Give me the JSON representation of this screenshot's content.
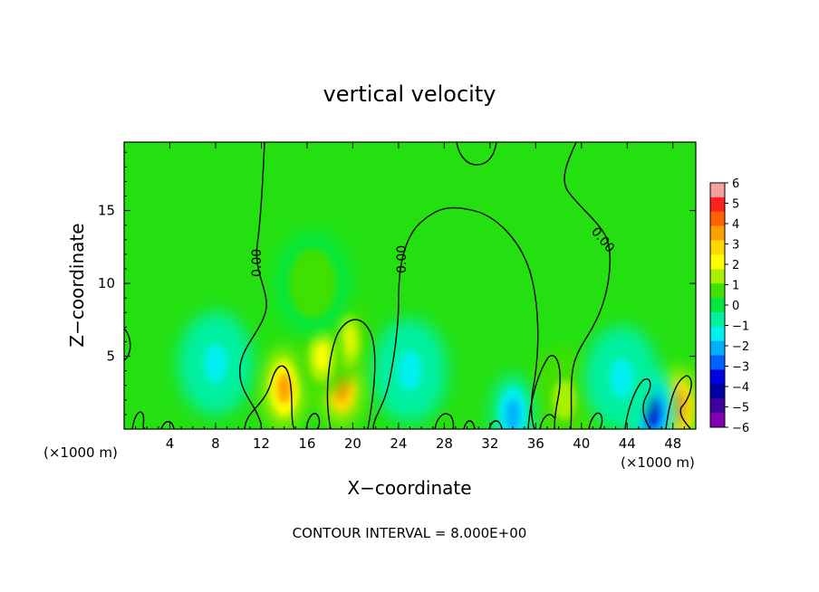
{
  "chart_data": {
    "type": "heatmap",
    "title": "vertical velocity",
    "xlabel": "X−coordinate",
    "ylabel": "Z−coordinate",
    "x_unit_left": "(×1000 m)",
    "x_unit_right": "(×1000 m)",
    "footer": "CONTOUR INTERVAL = 8.000E+00",
    "contour_label": "0.00",
    "xlim": [
      0,
      50
    ],
    "ylim": [
      0,
      19.7
    ],
    "x_ticks": [
      4,
      8,
      12,
      16,
      20,
      24,
      28,
      32,
      36,
      40,
      44,
      48
    ],
    "y_ticks": [
      5,
      10,
      15
    ],
    "colorbar": {
      "range": [
        -6,
        6
      ],
      "labels": [
        "6",
        "5",
        "4",
        "3",
        "2",
        "1",
        "0",
        "−1",
        "−2",
        "−3",
        "−4",
        "−5",
        "−6"
      ],
      "colors": [
        "#f5a0a0",
        "#ff2020",
        "#ff6000",
        "#ffa000",
        "#ffd800",
        "#ffff00",
        "#a8f000",
        "#40e000",
        "#00e840",
        "#00f0a0",
        "#00f0f0",
        "#00b0ff",
        "#0060ff",
        "#0000e0",
        "#0000a0",
        "#4000a0",
        "#8000b0"
      ]
    },
    "features": [
      {
        "x": 14.0,
        "z": 2.8,
        "w": 3.5,
        "type": "updraft"
      },
      {
        "x": 19.0,
        "z": 3.0,
        "w": 3.8,
        "type": "updraft"
      },
      {
        "x": 19.5,
        "z": 6.0,
        "w": 2.2,
        "type": "updraft"
      },
      {
        "x": 17.3,
        "z": 5.0,
        "w": 2.5,
        "type": "updraft"
      },
      {
        "x": 16.5,
        "z": 10.0,
        "w": 0.7,
        "type": "updraft"
      },
      {
        "x": 48.5,
        "z": 1.5,
        "w": 3.8,
        "type": "updraft"
      },
      {
        "x": 46.2,
        "z": 1.2,
        "w": -3.5,
        "type": "downdraft"
      },
      {
        "x": 38.5,
        "z": 2.0,
        "w": 1.2,
        "type": "updraft"
      },
      {
        "x": 8.0,
        "z": 4.5,
        "w": -1.5,
        "type": "downdraft"
      },
      {
        "x": 25.0,
        "z": 4.0,
        "w": -1.6,
        "type": "downdraft"
      },
      {
        "x": 34.0,
        "z": 1.0,
        "w": -2.5,
        "type": "downdraft"
      },
      {
        "x": 43.5,
        "z": 3.5,
        "w": -1.2,
        "type": "downdraft"
      }
    ]
  }
}
